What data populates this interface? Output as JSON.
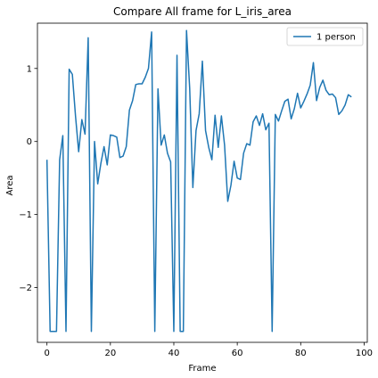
{
  "chart_data": {
    "type": "line",
    "title": "Compare All frame for L_iris_area",
    "xlabel": "Frame",
    "ylabel": "Area",
    "xlim": [
      -3,
      101
    ],
    "ylim": [
      -2.75,
      1.62
    ],
    "xticks": [
      0,
      20,
      40,
      60,
      80,
      100
    ],
    "yticks": [
      -2,
      -1,
      0,
      1
    ],
    "ytick_labels": [
      "−2",
      "−1",
      "0",
      "1"
    ],
    "grid": false,
    "legend_position": "upper right",
    "series": [
      {
        "name": "1 person",
        "color": "#1f77b4",
        "x": [
          0,
          1,
          2,
          3,
          4,
          5,
          6,
          7,
          8,
          9,
          10,
          11,
          12,
          13,
          14,
          15,
          16,
          17,
          18,
          19,
          20,
          21,
          22,
          23,
          24,
          25,
          26,
          27,
          28,
          29,
          30,
          31,
          32,
          33,
          34,
          35,
          36,
          37,
          38,
          39,
          40,
          41,
          42,
          43,
          44,
          45,
          46,
          47,
          48,
          49,
          50,
          51,
          52,
          53,
          54,
          55,
          56,
          57,
          58,
          59,
          60,
          61,
          62,
          63,
          64,
          65,
          66,
          67,
          68,
          69,
          70,
          71,
          72,
          73,
          74,
          75,
          76,
          77,
          78,
          79,
          80,
          81,
          82,
          83,
          84,
          85,
          86,
          87,
          88,
          89,
          90,
          91,
          92,
          93,
          94,
          95,
          96
        ],
        "values": [
          -0.25,
          -2.6,
          -2.6,
          -2.6,
          -0.25,
          0.08,
          -2.6,
          0.99,
          0.92,
          0.35,
          -0.14,
          0.3,
          0.1,
          1.42,
          -2.6,
          0.0,
          -0.58,
          -0.3,
          -0.07,
          -0.32,
          0.09,
          0.08,
          0.06,
          -0.22,
          -0.2,
          -0.07,
          0.43,
          0.56,
          0.78,
          0.79,
          0.79,
          0.88,
          1.0,
          1.5,
          -2.6,
          0.72,
          -0.05,
          0.09,
          -0.16,
          -0.28,
          -2.6,
          1.18,
          -2.6,
          -2.6,
          1.52,
          0.73,
          -0.63,
          0.15,
          0.38,
          1.1,
          0.15,
          -0.08,
          -0.25,
          0.36,
          -0.08,
          0.35,
          -0.05,
          -0.82,
          -0.6,
          -0.27,
          -0.5,
          -0.52,
          -0.16,
          -0.03,
          -0.05,
          0.27,
          0.35,
          0.22,
          0.38,
          0.16,
          0.25,
          -2.6,
          0.37,
          0.28,
          0.42,
          0.55,
          0.58,
          0.31,
          0.45,
          0.66,
          0.46,
          0.55,
          0.65,
          0.77,
          1.08,
          0.56,
          0.74,
          0.84,
          0.7,
          0.64,
          0.65,
          0.6,
          0.37,
          0.42,
          0.5,
          0.64,
          0.61
        ]
      }
    ]
  }
}
